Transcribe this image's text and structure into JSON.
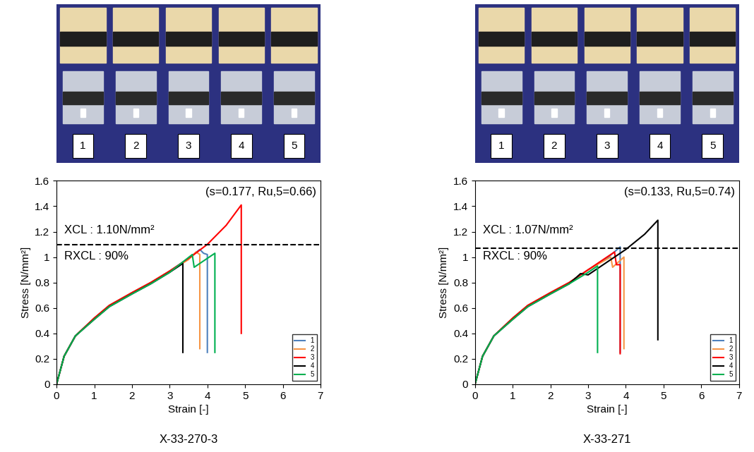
{
  "chart_data": [
    {
      "type": "line",
      "caption": "X-33-270-3",
      "photo_labels": [
        "1",
        "2",
        "3",
        "4",
        "5"
      ],
      "x_label": "Strain [-]",
      "y_label": "Stress [N/mm²]",
      "annotations": [
        {
          "text": "(s=0.177, Ru,5=0.66)"
        },
        {
          "text": "XCL : 1.10N/mm²"
        },
        {
          "text": "RXCL : 90%"
        }
      ],
      "threshold": 1.1,
      "xlim": [
        0,
        7
      ],
      "xticks": [
        0,
        1,
        2,
        3,
        4,
        5,
        6,
        7
      ],
      "ylim": [
        0,
        1.6
      ],
      "yticks": [
        0,
        0.2,
        0.4,
        0.6,
        0.8,
        1,
        1.2,
        1.4,
        1.6
      ],
      "legend": "lower right",
      "series": [
        {
          "name": "1",
          "color": "#4F81BD",
          "x": [
            0,
            0.2,
            0.5,
            1,
            1.4,
            2,
            2.5,
            3,
            3.5,
            3.8,
            3.9,
            4.0,
            4.0
          ],
          "values": [
            0,
            0.22,
            0.38,
            0.52,
            0.62,
            0.72,
            0.8,
            0.89,
            0.99,
            1.06,
            1.03,
            1.02,
            0.25
          ]
        },
        {
          "name": "2",
          "color": "#F79646",
          "x": [
            0,
            0.2,
            0.5,
            1,
            1.4,
            2,
            2.5,
            3,
            3.5,
            3.7,
            3.8,
            3.8
          ],
          "values": [
            0,
            0.22,
            0.38,
            0.52,
            0.62,
            0.72,
            0.8,
            0.89,
            0.98,
            1.04,
            1.02,
            0.28
          ]
        },
        {
          "name": "3",
          "color": "#FF0000",
          "x": [
            0,
            0.2,
            0.5,
            1,
            1.4,
            2,
            2.5,
            3,
            3.6,
            4.0,
            4.5,
            4.9,
            4.9
          ],
          "values": [
            0,
            0.22,
            0.38,
            0.52,
            0.62,
            0.72,
            0.8,
            0.89,
            1.01,
            1.1,
            1.25,
            1.41,
            0.4
          ]
        },
        {
          "name": "4",
          "color": "#000000",
          "x": [
            0,
            0.2,
            0.5,
            1,
            1.4,
            2,
            2.5,
            3,
            3.35,
            3.35
          ],
          "values": [
            0,
            0.22,
            0.38,
            0.51,
            0.61,
            0.71,
            0.79,
            0.88,
            0.95,
            0.25
          ]
        },
        {
          "name": "5",
          "color": "#00B050",
          "x": [
            0,
            0.2,
            0.5,
            1,
            1.4,
            2,
            2.5,
            3,
            3.6,
            3.65,
            3.9,
            4.2,
            4.2
          ],
          "values": [
            0,
            0.22,
            0.38,
            0.51,
            0.61,
            0.71,
            0.79,
            0.88,
            1.02,
            0.92,
            0.97,
            1.03,
            0.25
          ]
        }
      ]
    },
    {
      "type": "line",
      "caption": "X-33-271",
      "photo_labels": [
        "1",
        "2",
        "3",
        "4",
        "5"
      ],
      "x_label": "Strain [-]",
      "y_label": "Stress [N/mm²]",
      "annotations": [
        {
          "text": "(s=0.133, Ru,5=0.74)"
        },
        {
          "text": "XCL : 1.07N/mm²"
        },
        {
          "text": "RXCL : 90%"
        }
      ],
      "threshold": 1.07,
      "xlim": [
        0,
        7
      ],
      "xticks": [
        0,
        1,
        2,
        3,
        4,
        5,
        6,
        7
      ],
      "ylim": [
        0,
        1.6
      ],
      "yticks": [
        0,
        0.2,
        0.4,
        0.6,
        0.8,
        1,
        1.2,
        1.4,
        1.6
      ],
      "legend": "lower right",
      "series": [
        {
          "name": "1",
          "color": "#4F81BD",
          "x": [
            0,
            0.2,
            0.5,
            1,
            1.4,
            2,
            2.5,
            3,
            3.5,
            3.85,
            3.85
          ],
          "values": [
            0,
            0.22,
            0.38,
            0.52,
            0.62,
            0.72,
            0.8,
            0.9,
            0.99,
            1.08,
            0.25
          ]
        },
        {
          "name": "2",
          "color": "#F79646",
          "x": [
            0,
            0.2,
            0.5,
            1,
            1.4,
            2,
            2.5,
            3,
            3.6,
            3.65,
            3.95,
            3.95
          ],
          "values": [
            0,
            0.22,
            0.38,
            0.52,
            0.62,
            0.72,
            0.8,
            0.9,
            1.0,
            0.92,
            1.0,
            0.28
          ]
        },
        {
          "name": "3",
          "color": "#FF0000",
          "x": [
            0,
            0.2,
            0.5,
            1,
            1.4,
            2,
            2.5,
            3,
            3.7,
            3.75,
            3.85,
            3.85
          ],
          "values": [
            0,
            0.22,
            0.38,
            0.52,
            0.62,
            0.72,
            0.8,
            0.9,
            1.04,
            0.94,
            0.94,
            0.24
          ]
        },
        {
          "name": "4",
          "color": "#000000",
          "x": [
            0,
            0.2,
            0.5,
            1,
            1.4,
            2,
            2.5,
            2.8,
            3.0,
            3.2,
            4.0,
            4.5,
            4.85,
            4.85
          ],
          "values": [
            0,
            0.22,
            0.38,
            0.51,
            0.61,
            0.71,
            0.79,
            0.87,
            0.86,
            0.9,
            1.06,
            1.18,
            1.29,
            0.35
          ]
        },
        {
          "name": "5",
          "color": "#00B050",
          "x": [
            0,
            0.2,
            0.5,
            1,
            1.4,
            2,
            2.5,
            3,
            3.25,
            3.25
          ],
          "values": [
            0,
            0.22,
            0.38,
            0.51,
            0.61,
            0.71,
            0.79,
            0.88,
            0.93,
            0.25
          ]
        }
      ]
    }
  ]
}
